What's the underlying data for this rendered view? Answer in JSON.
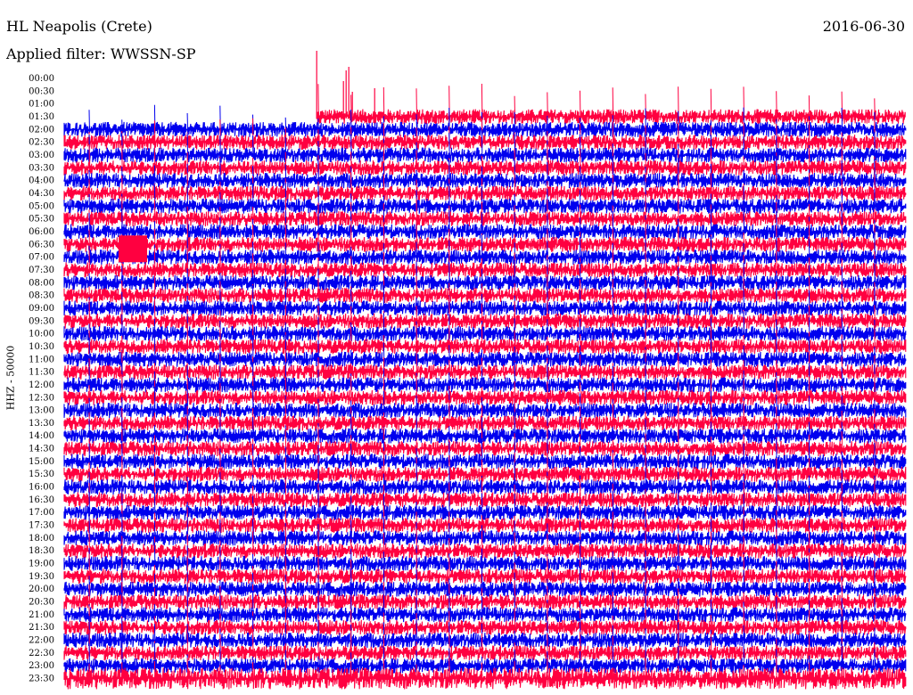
{
  "header": {
    "station": "HL Neapolis (Crete)",
    "filter_label": "Applied filter: WWSSN-SP",
    "date": "2016-06-30"
  },
  "colors": {
    "trace_a": "#0000ee",
    "trace_b": "#ff0040",
    "background": "#ffffff"
  },
  "chart_data": {
    "type": "line",
    "ylabel": "HHZ - 50000",
    "rows": [
      "00:00",
      "00:30",
      "01:00",
      "01:30",
      "02:00",
      "02:30",
      "03:00",
      "03:30",
      "04:00",
      "04:30",
      "05:00",
      "05:30",
      "06:00",
      "06:30",
      "07:00",
      "07:30",
      "08:00",
      "08:30",
      "09:00",
      "09:30",
      "10:00",
      "10:30",
      "11:00",
      "11:30",
      "12:00",
      "12:30",
      "13:00",
      "13:30",
      "14:00",
      "14:30",
      "15:00",
      "15:30",
      "16:00",
      "16:30",
      "17:00",
      "17:30",
      "18:00",
      "18:30",
      "19:00",
      "19:30",
      "20:00",
      "20:30",
      "21:00",
      "21:30",
      "22:00",
      "22:30",
      "23:00",
      "23:30"
    ],
    "series_colors": [
      "#0000ee",
      "#ff0040"
    ],
    "data_start_time": "01:30",
    "data_start_fraction": 0.3,
    "grid": false
  }
}
